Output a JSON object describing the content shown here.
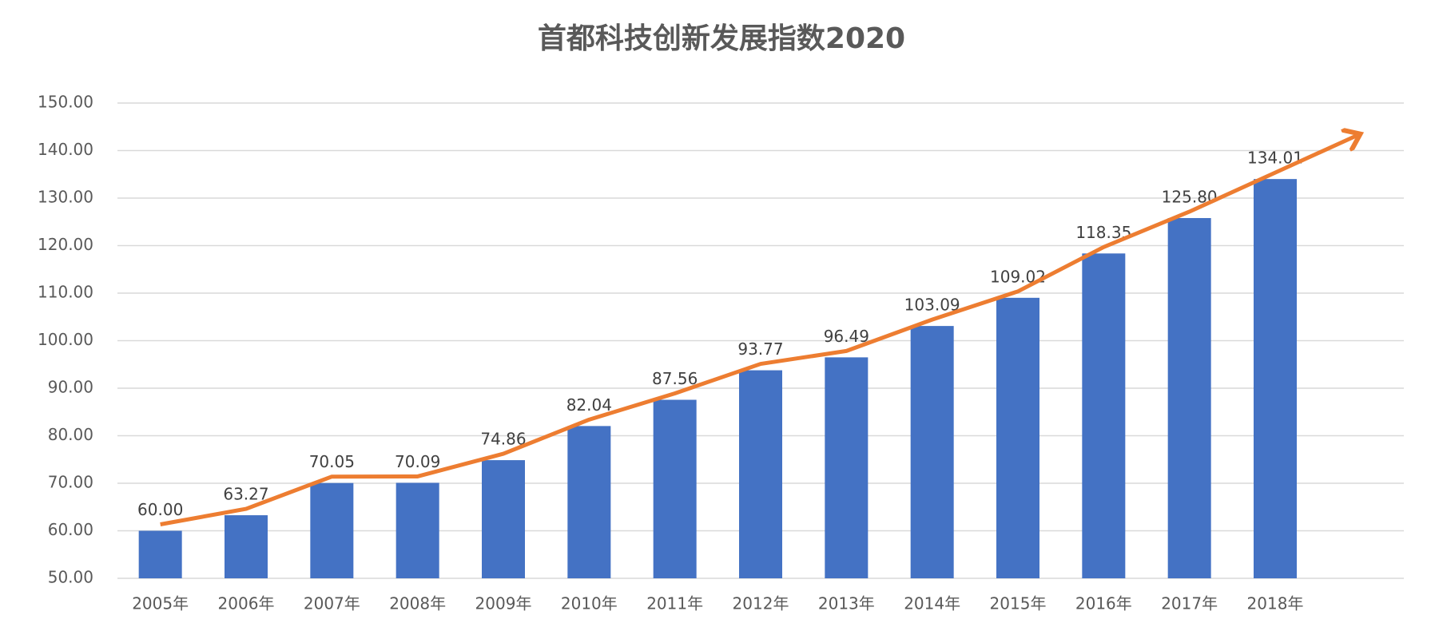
{
  "chart_data": {
    "type": "bar",
    "title": "首都科技创新发展指数2020",
    "categories": [
      "2005年",
      "2006年",
      "2007年",
      "2008年",
      "2009年",
      "2010年",
      "2011年",
      "2012年",
      "2013年",
      "2014年",
      "2015年",
      "2016年",
      "2017年",
      "2018年"
    ],
    "values": [
      60.0,
      63.27,
      70.05,
      70.09,
      74.86,
      82.04,
      87.56,
      93.77,
      96.49,
      103.09,
      109.02,
      118.35,
      125.8,
      134.01
    ],
    "value_labels": [
      "60.00",
      "63.27",
      "70.05",
      "70.09",
      "74.86",
      "82.04",
      "87.56",
      "93.77",
      "96.49",
      "103.09",
      "109.02",
      "118.35",
      "125.80",
      "134.01"
    ],
    "color": "#4472c4",
    "trend_color": "#ed7d31",
    "ylim": [
      50,
      150
    ],
    "yticks": [
      {
        "value": 50,
        "label": "50.00"
      },
      {
        "value": 60,
        "label": "60.00"
      },
      {
        "value": 70,
        "label": "70.00"
      },
      {
        "value": 80,
        "label": "80.00"
      },
      {
        "value": 90,
        "label": "90.00"
      },
      {
        "value": 100,
        "label": "100.00"
      },
      {
        "value": 110,
        "label": "110.00"
      },
      {
        "value": 120,
        "label": "120.00"
      },
      {
        "value": 130,
        "label": "130.00"
      },
      {
        "value": 140,
        "label": "140.00"
      },
      {
        "value": 150,
        "label": "150.00"
      }
    ],
    "grid": true
  }
}
